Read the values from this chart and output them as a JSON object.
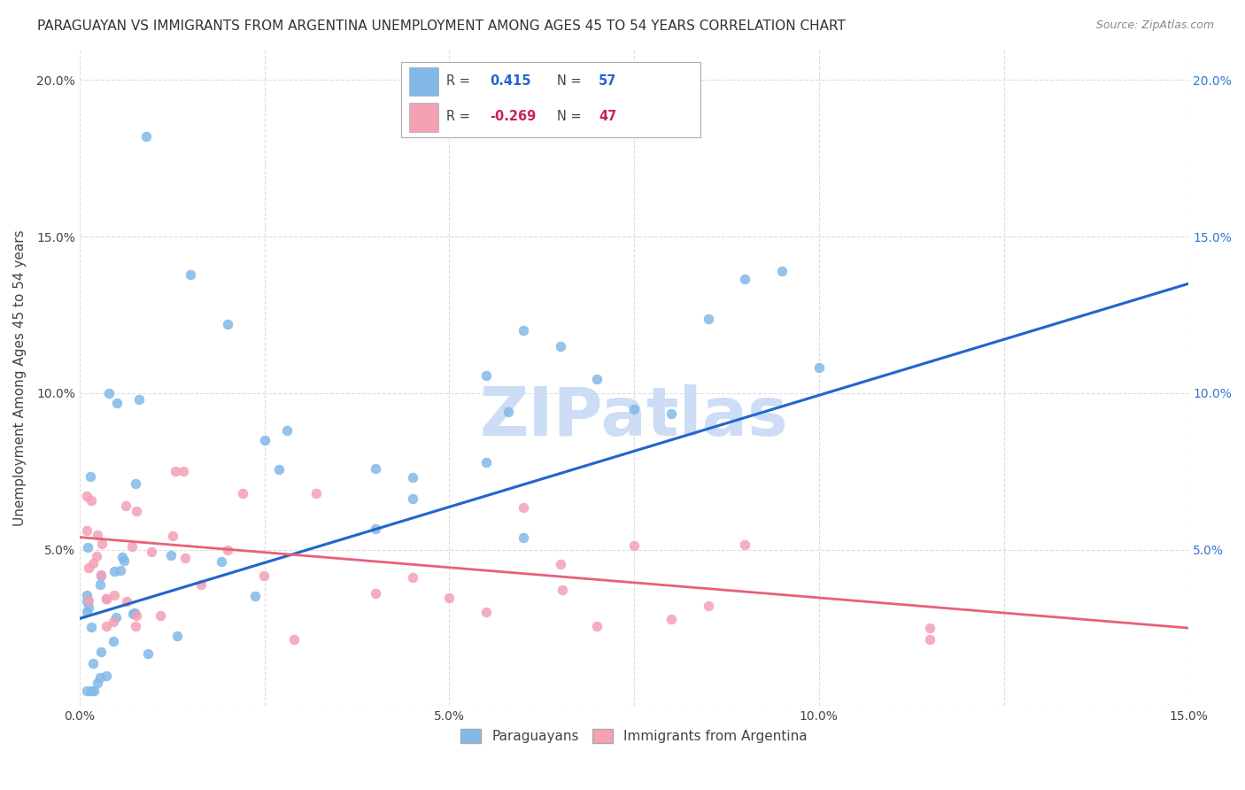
{
  "title": "PARAGUAYAN VS IMMIGRANTS FROM ARGENTINA UNEMPLOYMENT AMONG AGES 45 TO 54 YEARS CORRELATION CHART",
  "source": "Source: ZipAtlas.com",
  "ylabel": "Unemployment Among Ages 45 to 54 years",
  "xmin": 0.0,
  "xmax": 0.15,
  "ymin": 0.0,
  "ymax": 0.21,
  "blue_R": 0.415,
  "blue_N": 57,
  "pink_R": -0.269,
  "pink_N": 47,
  "blue_color": "#82b9e8",
  "pink_color": "#f4a0b5",
  "trendline_blue_solid": "#2266cc",
  "trendline_blue_dash": "#b8d0f0",
  "trendline_pink": "#e8607a",
  "watermark_color": "#ccddf5",
  "xticks": [
    0.0,
    0.025,
    0.05,
    0.075,
    0.1,
    0.125,
    0.15
  ],
  "xtick_labels": [
    "0.0%",
    "",
    "5.0%",
    "",
    "10.0%",
    "",
    "15.0%"
  ],
  "yticks_left": [
    0.0,
    0.05,
    0.1,
    0.15,
    0.2
  ],
  "ytick_labels_left": [
    "",
    "5.0%",
    "10.0%",
    "15.0%",
    "20.0%"
  ],
  "yticks_right": [
    0.05,
    0.1,
    0.15,
    0.2
  ],
  "ytick_labels_right": [
    "5.0%",
    "10.0%",
    "15.0%",
    "20.0%"
  ],
  "legend_labels": [
    "Paraguayans",
    "Immigrants from Argentina"
  ],
  "grid_color": "#dddddd",
  "background_color": "#ffffff",
  "blue_line_x0": 0.0,
  "blue_line_y0": 0.028,
  "blue_line_x1": 0.15,
  "blue_line_y1": 0.135,
  "pink_line_x0": 0.0,
  "pink_line_y0": 0.054,
  "pink_line_x1": 0.15,
  "pink_line_y1": 0.025
}
